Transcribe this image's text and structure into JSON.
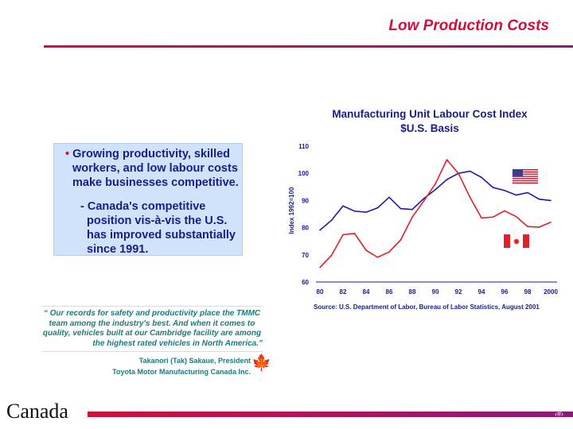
{
  "header": {
    "title": "Low Production Costs"
  },
  "bullets": {
    "main": "Growing productivity, skilled workers, and low labour costs make businesses competitive.",
    "sub": "Canada's competitive position vis-à-vis the U.S. has improved substantially since 1991."
  },
  "quote": {
    "text1": "“ Our records for safety and productivity place the TMMC team among the industry's best.  And when it comes to quality, vehicles built at our Cambridge facility are among",
    "text2": "the highest rated vehicles in North America.”",
    "author": "Takanori (Tak) Sakaue, President",
    "company": "Toyota Motor Manufacturing Canada Inc."
  },
  "footer": {
    "wordmark": "Canada",
    "page": "‹#›"
  },
  "chart_data": {
    "type": "line",
    "title": "Manufacturing Unit Labour Cost Index",
    "subtitle": "$U.S. Basis",
    "ylabel": "Index 1992=100",
    "xlabel": "",
    "ylim": [
      60,
      110
    ],
    "yticks": [
      60,
      70,
      80,
      90,
      100,
      110
    ],
    "x": [
      1980,
      1981,
      1982,
      1983,
      1984,
      1985,
      1986,
      1987,
      1988,
      1989,
      1990,
      1991,
      1992,
      1993,
      1994,
      1995,
      1996,
      1997,
      1998,
      1999,
      2000
    ],
    "xtick_labels": [
      "80",
      "82",
      "84",
      "86",
      "88",
      "90",
      "92",
      "94",
      "96",
      "98",
      "2000"
    ],
    "series": [
      {
        "legend": "us-flag",
        "color": "#1a1ab0",
        "values": [
          79.1,
          82.7,
          88,
          86.1,
          85.7,
          87.3,
          91.2,
          87,
          86.7,
          90.7,
          94,
          97.7,
          100,
          100.8,
          98.5,
          94.8,
          93.7,
          92,
          92.9,
          90.5,
          90
        ]
      },
      {
        "legend": "canada-flag",
        "color": "#e0202a",
        "values": [
          65.4,
          69.8,
          77.4,
          77.9,
          71.7,
          69.1,
          71.1,
          75.5,
          83.9,
          89.8,
          96.1,
          105,
          100,
          91.2,
          83.6,
          83.9,
          86.2,
          84.1,
          80.4,
          80.2,
          82
        ]
      }
    ],
    "grid": false,
    "source": "Source:  U.S. Department of Labor, Bureau of Labor Statistics, August  2001"
  }
}
